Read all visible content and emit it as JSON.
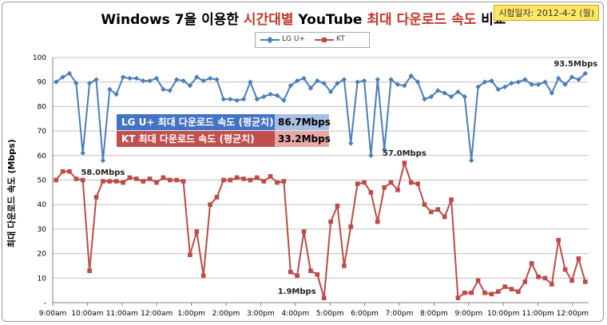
{
  "title": {
    "prefix": "Windows 7을 이용한 ",
    "highlight": "시간대별",
    "middle": " YouTube ",
    "highlight2": "최대 다운로드 속도",
    "suffix": " 비교"
  },
  "test_date": "시험일자: 2012-4-2 (월)",
  "summary": {
    "lg": {
      "label": "LG U+ 최대 다운로드 속도 (평균치)",
      "value": "86.7Mbps"
    },
    "kt": {
      "label": "KT 최대 다운로드 속도 (평균치)",
      "value": "33.2Mbps"
    }
  },
  "chart_data": {
    "type": "line",
    "ylabel": "최대 다운로드 속도 (Mbps)",
    "ylim": [
      0,
      100
    ],
    "yticks": [
      "-",
      "10",
      "20",
      "30",
      "40",
      "50",
      "60",
      "70",
      "80",
      "90",
      "100"
    ],
    "xticks": [
      "9:00am",
      "10:00am",
      "11:00am",
      "12:00am",
      "1:00pm",
      "2:00pm",
      "3:00pm",
      "4:00pm",
      "5:00pm",
      "6:00pm",
      "7:00pm",
      "8:00pm",
      "9:00pm",
      "10:00pm",
      "11:00pm",
      "12:00pm"
    ],
    "grid": true,
    "legend_position": "top-center",
    "series": [
      {
        "name": "LG U+",
        "color": "#4a7ebb",
        "marker": "diamond",
        "values": [
          90,
          92,
          93.5,
          89.5,
          61,
          89.5,
          91,
          58,
          87,
          85,
          92,
          91.5,
          91.5,
          90.5,
          90.5,
          91.5,
          87,
          86.5,
          91,
          90.5,
          88.5,
          92,
          90.5,
          91.5,
          91,
          83,
          83,
          82.5,
          83,
          90,
          83,
          84,
          85,
          84.5,
          82.5,
          88.5,
          90.5,
          91.5,
          87.5,
          90.5,
          89.5,
          86,
          89.5,
          91,
          65,
          90,
          90.5,
          60,
          91,
          62.5,
          91,
          89,
          88.5,
          92.5,
          90,
          83,
          84,
          86.5,
          85.5,
          84,
          86,
          84,
          58,
          88,
          90,
          90.5,
          87,
          88,
          89.5,
          90,
          91,
          89,
          89,
          90,
          85.5,
          91.5,
          89,
          92,
          91,
          93.5
        ]
      },
      {
        "name": "KT",
        "color": "#be4b48",
        "marker": "square",
        "values": [
          50,
          53.5,
          53.5,
          50.5,
          50,
          13,
          43,
          49.5,
          49.5,
          49.5,
          49,
          51,
          50.5,
          49.5,
          50.5,
          49,
          51,
          50,
          50,
          49.5,
          19.5,
          29,
          11,
          40,
          43,
          50,
          50,
          51,
          50.5,
          50,
          51,
          49.5,
          51.5,
          49,
          49.5,
          12.5,
          11,
          29,
          13,
          11.5,
          1.9,
          33,
          39.5,
          15,
          31,
          48.5,
          49,
          45,
          33,
          47,
          49,
          46,
          57,
          49,
          48.5,
          40,
          37,
          38,
          35,
          42,
          1.9,
          4,
          4,
          9,
          4,
          3.5,
          4.5,
          6.5,
          5.5,
          4.5,
          8.5,
          16,
          10.5,
          10,
          7.5,
          25.5,
          13.5,
          9,
          18,
          8.5
        ]
      }
    ],
    "annotations": [
      "93.5Mbps",
      "57.0Mbps",
      "58.0Mbps",
      "1.9Mbps"
    ]
  }
}
